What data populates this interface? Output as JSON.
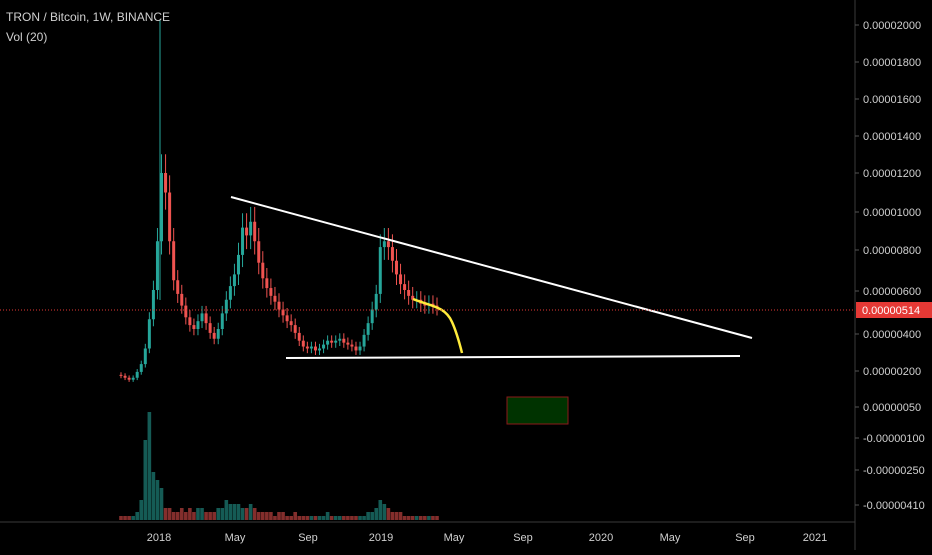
{
  "header": {
    "title": "TRON / Bitcoin, 1W, BINANCE",
    "volume_label": "Vol (20)"
  },
  "colors": {
    "background": "#000000",
    "up": "#26a69a",
    "down": "#ef5350",
    "price_tag": "#e53935",
    "trendline": "#ffffff",
    "projection": "#ffeb3b",
    "box_fill": "#003300",
    "box_border": "#8b1a1a",
    "axis_border": "#3a3a3a"
  },
  "chart_data": {
    "type": "candlestick",
    "title": "TRON / Bitcoin, 1W, BINANCE",
    "y_axis_ticks": [
      "0.00002000",
      "0.00001800",
      "0.00001600",
      "0.00001400",
      "0.00001200",
      "0.00001000",
      "0.00000800",
      "0.00000600",
      "0.00000400",
      "0.00000200",
      "0.00000050",
      "-0.00000100",
      "-0.00000250",
      "-0.00000410"
    ],
    "x_axis_ticks": [
      "2018",
      "May",
      "Sep",
      "2019",
      "May",
      "Sep",
      "2020",
      "May",
      "Sep",
      "2021"
    ],
    "last_price": "0.00000514",
    "ylim": [
      -5e-06,
      2.1e-05
    ],
    "grid": false,
    "close_series": [
      1.6e-06,
      1.5e-06,
      1.4e-06,
      1.5e-06,
      1.8e-06,
      2.2e-06,
      3e-06,
      4.5e-06,
      6e-06,
      8.5e-06,
      1.2e-05,
      1.1e-05,
      8.5e-06,
      6.5e-06,
      5.8e-06,
      5.2e-06,
      4.6e-06,
      4.2e-06,
      4e-06,
      4.4e-06,
      4.8e-06,
      4.3e-06,
      3.8e-06,
      3.5e-06,
      4e-06,
      4.8e-06,
      5.5e-06,
      6.2e-06,
      6.8e-06,
      7.8e-06,
      9.2e-06,
      8.8e-06,
      9.5e-06,
      8.5e-06,
      7.4e-06,
      6.6e-06,
      6.1e-06,
      5.7e-06,
      5.4e-06,
      5e-06,
      4.7e-06,
      4.4e-06,
      4.2e-06,
      3.8e-06,
      3.4e-06,
      3.1e-06,
      3e-06,
      3.1e-06,
      2.9e-06,
      3e-06,
      3.2e-06,
      3.4e-06,
      3.3e-06,
      3.4e-06,
      3.5e-06,
      3.3e-06,
      3.2e-06,
      3.1e-06,
      2.9e-06,
      3.1e-06,
      3.7e-06,
      4.3e-06,
      5e-06,
      5.8e-06,
      8.2e-06,
      8.5e-06,
      8.2e-06,
      7.5e-06,
      6.8e-06,
      6.3e-06,
      6e-06,
      5.7e-06,
      5.5e-06,
      5.5e-06,
      5.3e-06,
      5.2e-06,
      5.3e-06,
      5.2e-06,
      5.1e-06
    ],
    "volume_series": [
      1,
      1,
      1,
      1,
      2,
      5,
      16,
      20,
      9,
      10,
      8,
      3,
      3,
      2,
      2,
      3,
      2,
      3,
      2,
      3,
      3,
      2,
      2,
      2,
      3,
      3,
      5,
      4,
      4,
      4,
      3,
      3,
      4,
      3,
      2,
      2,
      2,
      2,
      1,
      2,
      2,
      1,
      1,
      2,
      1,
      1,
      1,
      1,
      1,
      1,
      1,
      2,
      1,
      1,
      1,
      1,
      1,
      1,
      1,
      1,
      1,
      2,
      2,
      3,
      5,
      4,
      3,
      2,
      2,
      2,
      1,
      1,
      1,
      1,
      1,
      1,
      1,
      1,
      1
    ],
    "volume_spikes": {
      "6": 20,
      "7": 27,
      "8": 12
    },
    "annotations": {
      "upper_trendline": {
        "from_index": 19,
        "from_price": 1.07e-05,
        "to_label": "Sep",
        "to_price": 3.7e-06
      },
      "lower_trendline": {
        "from_index": 30,
        "from_price": 2.6e-06,
        "to_label": "Sep",
        "to_price": 2.7e-06
      }
    }
  }
}
